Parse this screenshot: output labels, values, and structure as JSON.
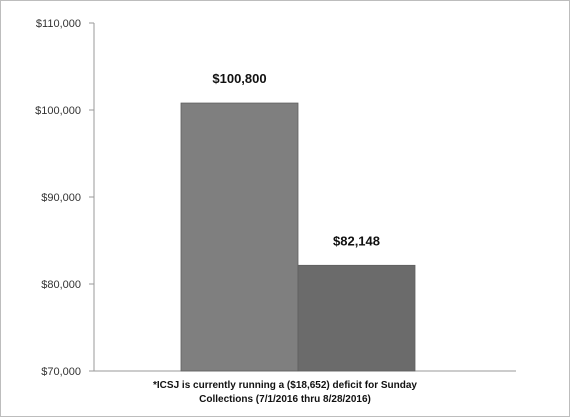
{
  "chart_data": {
    "type": "bar",
    "categories": [
      "",
      ""
    ],
    "values": [
      100800,
      82148
    ],
    "ylim": [
      70000,
      110000
    ],
    "yticks": [
      70000,
      80000,
      90000,
      100000,
      110000
    ],
    "ytick_labels": [
      "$70,000",
      "$80,000",
      "$90,000",
      "$100,000",
      "$110,000"
    ],
    "data_labels": [
      "$100,800",
      "$82,148"
    ],
    "grid": false,
    "legend": "none",
    "colors": [
      "#7f7f7f",
      "#6b6b6b"
    ],
    "annotations": [
      "*ICSJ is currently running a ($18,652) deficit for Sunday",
      "Collections (7/1/2016 thru 8/28/2016)"
    ]
  }
}
